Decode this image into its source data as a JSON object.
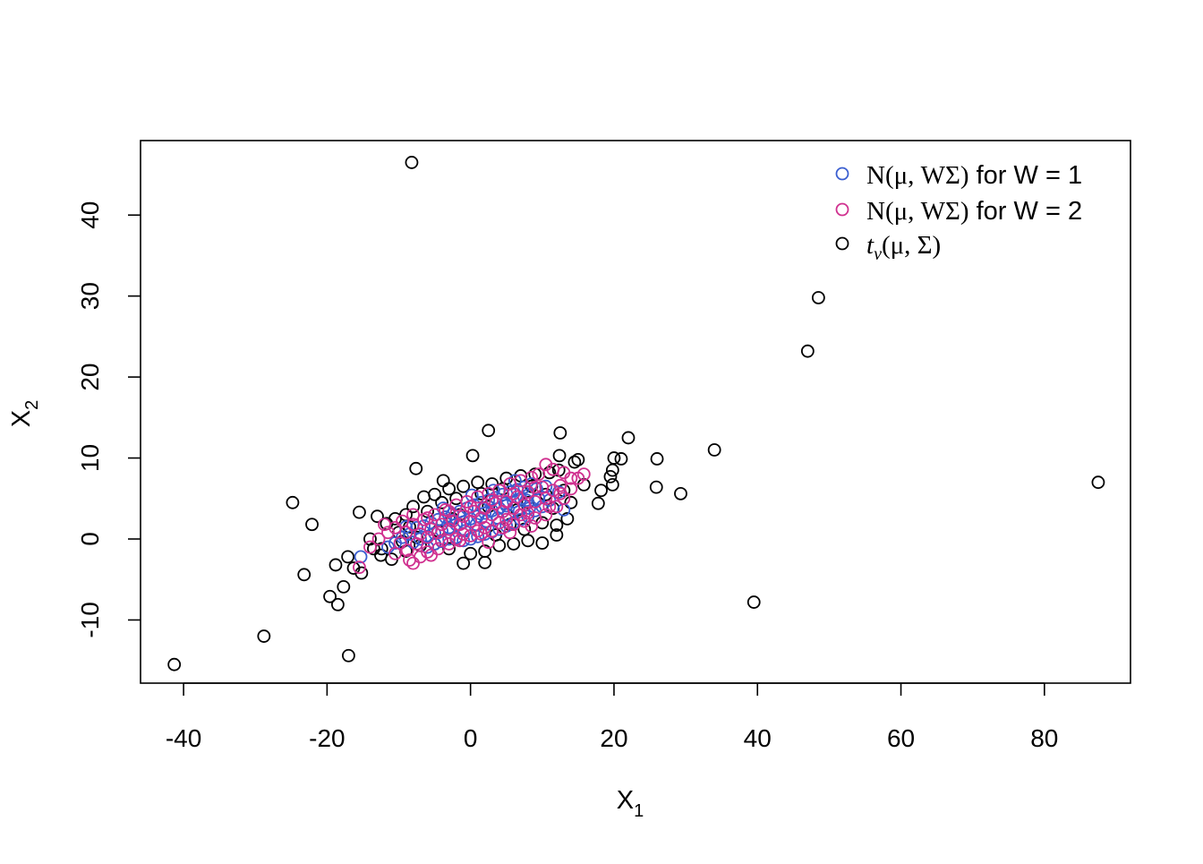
{
  "chart_data": {
    "type": "scatter",
    "title": "",
    "xlabel": "X",
    "xlabel_sub": "1",
    "ylabel": "X",
    "ylabel_sub": "2",
    "xlim": [
      -46,
      92
    ],
    "ylim": [
      -17.8,
      49.2
    ],
    "xticks": [
      -40,
      -20,
      0,
      20,
      40,
      60,
      80
    ],
    "yticks": [
      -10,
      0,
      10,
      20,
      30,
      40
    ],
    "grid": false,
    "legend_position": "top-right",
    "legend": [
      {
        "series": "t",
        "pre": "",
        "math": "N(μ, WΣ)",
        "post": " for W = 1",
        "italic_t": false,
        "color": "#3a5ed0"
      },
      {
        "series": "w2",
        "pre": "",
        "math": "N(μ, WΣ)",
        "post": " for W = 2",
        "italic_t": false,
        "color": "#d0308f"
      },
      {
        "series": "tdist",
        "pre": "t",
        "sub": "ν",
        "math": "(μ, Σ)",
        "post": "",
        "italic_t": true,
        "color": "#000000"
      }
    ],
    "series": [
      {
        "key": "tdist",
        "color": "#000000",
        "points": [
          [
            -8.2,
            46.5
          ],
          [
            48.5,
            29.8
          ],
          [
            47.0,
            23.2
          ],
          [
            87.5,
            7.0
          ],
          [
            39.5,
            -7.8
          ],
          [
            34.0,
            11.0
          ],
          [
            29.3,
            5.6
          ],
          [
            26.0,
            9.9
          ],
          [
            25.9,
            6.4
          ],
          [
            22.0,
            12.5
          ],
          [
            21.0,
            9.9
          ],
          [
            20.0,
            10.0
          ],
          [
            19.8,
            8.5
          ],
          [
            19.5,
            7.7
          ],
          [
            19.8,
            6.7
          ],
          [
            18.2,
            6.0
          ],
          [
            17.8,
            4.4
          ],
          [
            15.8,
            6.7
          ],
          [
            15.0,
            9.8
          ],
          [
            14.5,
            9.5
          ],
          [
            12.5,
            13.1
          ],
          [
            12.4,
            10.3
          ],
          [
            12.3,
            8.5
          ],
          [
            12.0,
            1.7
          ],
          [
            2.5,
            13.4
          ],
          [
            0.3,
            10.3
          ],
          [
            -3.8,
            7.2
          ],
          [
            -7.6,
            8.7
          ],
          [
            -24.8,
            4.5
          ],
          [
            -22.1,
            1.8
          ],
          [
            -15.5,
            3.3
          ],
          [
            -13.0,
            2.8
          ],
          [
            -23.2,
            -4.4
          ],
          [
            -18.8,
            -3.2
          ],
          [
            -17.1,
            -2.2
          ],
          [
            -16.3,
            -3.6
          ],
          [
            -15.2,
            -4.2
          ],
          [
            -17.7,
            -5.9
          ],
          [
            -19.6,
            -7.1
          ],
          [
            -18.5,
            -8.1
          ],
          [
            -17.0,
            -14.4
          ],
          [
            -28.8,
            -12.0
          ],
          [
            -41.3,
            -15.5
          ],
          [
            -14.0,
            0.0
          ],
          [
            -12.4,
            -1.2
          ],
          [
            -11.7,
            1.9
          ],
          [
            -10.5,
            2.5
          ],
          [
            -9.0,
            3.0
          ],
          [
            -8.0,
            4.0
          ],
          [
            -6.5,
            5.2
          ],
          [
            -5.0,
            5.5
          ],
          [
            -3.0,
            6.2
          ],
          [
            -1.0,
            6.5
          ],
          [
            1.0,
            7.0
          ],
          [
            3.0,
            6.8
          ],
          [
            5.0,
            7.5
          ],
          [
            7.0,
            7.8
          ],
          [
            9.0,
            8.0
          ],
          [
            11.0,
            8.2
          ],
          [
            13.0,
            6.0
          ],
          [
            14.0,
            4.5
          ],
          [
            13.5,
            2.5
          ],
          [
            12.0,
            0.5
          ],
          [
            10.0,
            -0.5
          ],
          [
            8.0,
            -0.2
          ],
          [
            6.0,
            -0.6
          ],
          [
            4.0,
            -0.8
          ],
          [
            2.0,
            -1.5
          ],
          [
            0.0,
            -1.8
          ],
          [
            -1.0,
            -3.0
          ],
          [
            2.0,
            -2.9
          ],
          [
            -3.0,
            -1.2
          ],
          [
            -5.0,
            -0.6
          ],
          [
            -7.0,
            -0.8
          ],
          [
            -9.0,
            -1.5
          ],
          [
            -11.0,
            -2.5
          ],
          [
            -12.5,
            -2.0
          ],
          [
            -13.5,
            -1.2
          ],
          [
            -10.0,
            0.8
          ],
          [
            -8.5,
            1.5
          ],
          [
            -6.0,
            3.4
          ],
          [
            -4.0,
            4.5
          ],
          [
            -2.0,
            5.0
          ],
          [
            1.5,
            5.6
          ],
          [
            4.5,
            6.2
          ],
          [
            8.5,
            6.5
          ],
          [
            10.5,
            5.5
          ],
          [
            11.5,
            3.8
          ],
          [
            10.0,
            2.0
          ],
          [
            7.5,
            1.2
          ],
          [
            5.5,
            1.8
          ],
          [
            3.5,
            0.5
          ],
          [
            -2.5,
            2.5
          ],
          [
            -4.5,
            1.0
          ],
          [
            -7.5,
            0.2
          ],
          [
            6.5,
            3.6
          ],
          [
            8.0,
            4.5
          ],
          [
            2.5,
            4.0
          ],
          [
            -1.5,
            3.0
          ],
          [
            -9.5,
            -0.3
          ]
        ]
      },
      {
        "key": "w1",
        "color": "#3a5ed0",
        "points": [
          [
            -15.3,
            -2.2
          ],
          [
            13.0,
            3.6
          ],
          [
            12.3,
            5.8
          ],
          [
            10.5,
            6.5
          ],
          [
            9.2,
            6.2
          ],
          [
            8.0,
            5.4
          ],
          [
            7.0,
            5.0
          ],
          [
            6.0,
            4.6
          ],
          [
            5.0,
            4.1
          ],
          [
            4.0,
            3.8
          ],
          [
            3.0,
            3.5
          ],
          [
            2.0,
            3.2
          ],
          [
            1.0,
            2.8
          ],
          [
            0.0,
            2.5
          ],
          [
            -1.0,
            2.1
          ],
          [
            -2.0,
            1.8
          ],
          [
            -3.0,
            1.4
          ],
          [
            -4.0,
            1.0
          ],
          [
            -5.0,
            0.7
          ],
          [
            -6.0,
            0.3
          ],
          [
            -7.0,
            0.0
          ],
          [
            -8.0,
            -0.4
          ],
          [
            -8.5,
            0.6
          ],
          [
            -7.5,
            1.4
          ],
          [
            -6.5,
            1.6
          ],
          [
            -5.5,
            2.0
          ],
          [
            -4.5,
            2.4
          ],
          [
            -3.5,
            2.7
          ],
          [
            -2.5,
            3.1
          ],
          [
            -1.5,
            3.4
          ],
          [
            -0.5,
            3.8
          ],
          [
            0.5,
            4.2
          ],
          [
            1.5,
            4.5
          ],
          [
            2.5,
            4.8
          ],
          [
            3.5,
            5.1
          ],
          [
            4.5,
            5.5
          ],
          [
            5.5,
            5.8
          ],
          [
            6.5,
            6.1
          ],
          [
            7.5,
            6.4
          ],
          [
            8.5,
            6.8
          ],
          [
            9.5,
            5.0
          ],
          [
            10.0,
            4.0
          ],
          [
            9.0,
            3.5
          ],
          [
            8.0,
            2.8
          ],
          [
            7.0,
            2.4
          ],
          [
            6.0,
            2.0
          ],
          [
            5.0,
            1.6
          ],
          [
            4.0,
            1.2
          ],
          [
            3.0,
            0.9
          ],
          [
            2.0,
            0.6
          ],
          [
            1.0,
            0.3
          ],
          [
            0.0,
            0.0
          ],
          [
            -1.0,
            -0.2
          ],
          [
            -2.0,
            0.2
          ],
          [
            -3.0,
            0.0
          ],
          [
            -4.0,
            -0.3
          ],
          [
            -5.0,
            -0.6
          ],
          [
            -6.0,
            -1.0
          ],
          [
            0.8,
            1.8
          ],
          [
            2.2,
            2.2
          ],
          [
            3.8,
            2.6
          ],
          [
            5.2,
            3.0
          ],
          [
            6.8,
            3.4
          ],
          [
            8.2,
            3.8
          ],
          [
            -2.8,
            2.3
          ],
          [
            -0.8,
            1.0
          ],
          [
            1.8,
            3.8
          ],
          [
            4.8,
            4.4
          ],
          [
            7.8,
            4.8
          ],
          [
            11.0,
            4.8
          ],
          [
            -9.5,
            0.2
          ],
          [
            -10.5,
            -0.5
          ],
          [
            -11.5,
            -1.0
          ],
          [
            -9.0,
            1.5
          ],
          [
            3.2,
            6.0
          ],
          [
            6.2,
            7.2
          ],
          [
            0.2,
            5.4
          ],
          [
            -3.8,
            3.8
          ]
        ]
      },
      {
        "key": "w2",
        "color": "#d0308f",
        "points": [
          [
            -15.5,
            -3.5
          ],
          [
            -14.0,
            -1.0
          ],
          [
            -12.8,
            0.0
          ],
          [
            -11.5,
            0.8
          ],
          [
            -10.5,
            1.4
          ],
          [
            -9.5,
            2.2
          ],
          [
            -8.0,
            -3.0
          ],
          [
            -7.0,
            -2.2
          ],
          [
            -6.0,
            -1.6
          ],
          [
            -4.5,
            -1.2
          ],
          [
            -3.0,
            -0.6
          ],
          [
            -1.5,
            -0.2
          ],
          [
            0.0,
            0.4
          ],
          [
            1.5,
            0.6
          ],
          [
            3.0,
            1.0
          ],
          [
            4.5,
            1.4
          ],
          [
            6.0,
            1.8
          ],
          [
            7.5,
            2.2
          ],
          [
            9.0,
            2.6
          ],
          [
            10.5,
            3.0
          ],
          [
            12.0,
            4.0
          ],
          [
            13.0,
            5.0
          ],
          [
            14.0,
            6.2
          ],
          [
            15.0,
            7.5
          ],
          [
            15.8,
            8.0
          ],
          [
            14.0,
            7.5
          ],
          [
            13.0,
            8.2
          ],
          [
            11.5,
            8.6
          ],
          [
            10.5,
            9.2
          ],
          [
            9.5,
            8.0
          ],
          [
            8.5,
            7.6
          ],
          [
            7.0,
            7.2
          ],
          [
            5.5,
            6.8
          ],
          [
            4.0,
            6.0
          ],
          [
            2.5,
            5.6
          ],
          [
            1.0,
            5.2
          ],
          [
            -0.5,
            4.6
          ],
          [
            -2.0,
            4.2
          ],
          [
            -3.5,
            3.6
          ],
          [
            -5.0,
            3.0
          ],
          [
            -6.5,
            2.4
          ],
          [
            -8.0,
            1.8
          ],
          [
            -9.0,
            0.8
          ],
          [
            -9.8,
            -0.5
          ],
          [
            -8.8,
            -1.4
          ],
          [
            -7.5,
            -0.6
          ],
          [
            -6.0,
            0.2
          ],
          [
            -4.5,
            0.8
          ],
          [
            -3.0,
            1.2
          ],
          [
            -1.5,
            1.8
          ],
          [
            0.0,
            2.2
          ],
          [
            1.5,
            2.6
          ],
          [
            3.0,
            3.0
          ],
          [
            4.5,
            3.4
          ],
          [
            6.0,
            3.8
          ],
          [
            7.5,
            4.2
          ],
          [
            9.0,
            4.6
          ],
          [
            10.5,
            5.0
          ],
          [
            11.5,
            6.0
          ],
          [
            12.5,
            6.6
          ],
          [
            10.0,
            6.4
          ],
          [
            8.0,
            5.8
          ],
          [
            6.5,
            5.2
          ],
          [
            5.0,
            4.6
          ],
          [
            3.5,
            4.4
          ],
          [
            2.0,
            3.8
          ],
          [
            0.5,
            3.4
          ],
          [
            -1.0,
            2.8
          ],
          [
            -2.5,
            2.2
          ],
          [
            -4.0,
            1.8
          ],
          [
            -5.5,
            1.2
          ],
          [
            -7.0,
            0.6
          ],
          [
            -4.0,
            -0.2
          ],
          [
            -1.0,
            0.6
          ],
          [
            2.0,
            1.4
          ],
          [
            5.0,
            2.4
          ],
          [
            8.0,
            3.2
          ],
          [
            11.0,
            4.0
          ],
          [
            -6.0,
            2.6
          ],
          [
            -3.0,
            3.4
          ],
          [
            0.0,
            4.0
          ],
          [
            3.0,
            4.8
          ],
          [
            6.0,
            5.6
          ],
          [
            9.0,
            6.4
          ],
          [
            -10.5,
            -1.8
          ],
          [
            -8.5,
            -2.6
          ],
          [
            -5.5,
            -2.0
          ],
          [
            2.5,
            -0.4
          ],
          [
            5.5,
            0.8
          ],
          [
            8.5,
            1.6
          ],
          [
            12.5,
            5.6
          ],
          [
            -12.0,
            1.8
          ],
          [
            -8.0,
            3.0
          ],
          [
            -2.0,
            0.0
          ],
          [
            1.0,
            1.0
          ],
          [
            4.0,
            2.0
          ],
          [
            7.0,
            3.0
          ]
        ]
      }
    ]
  }
}
